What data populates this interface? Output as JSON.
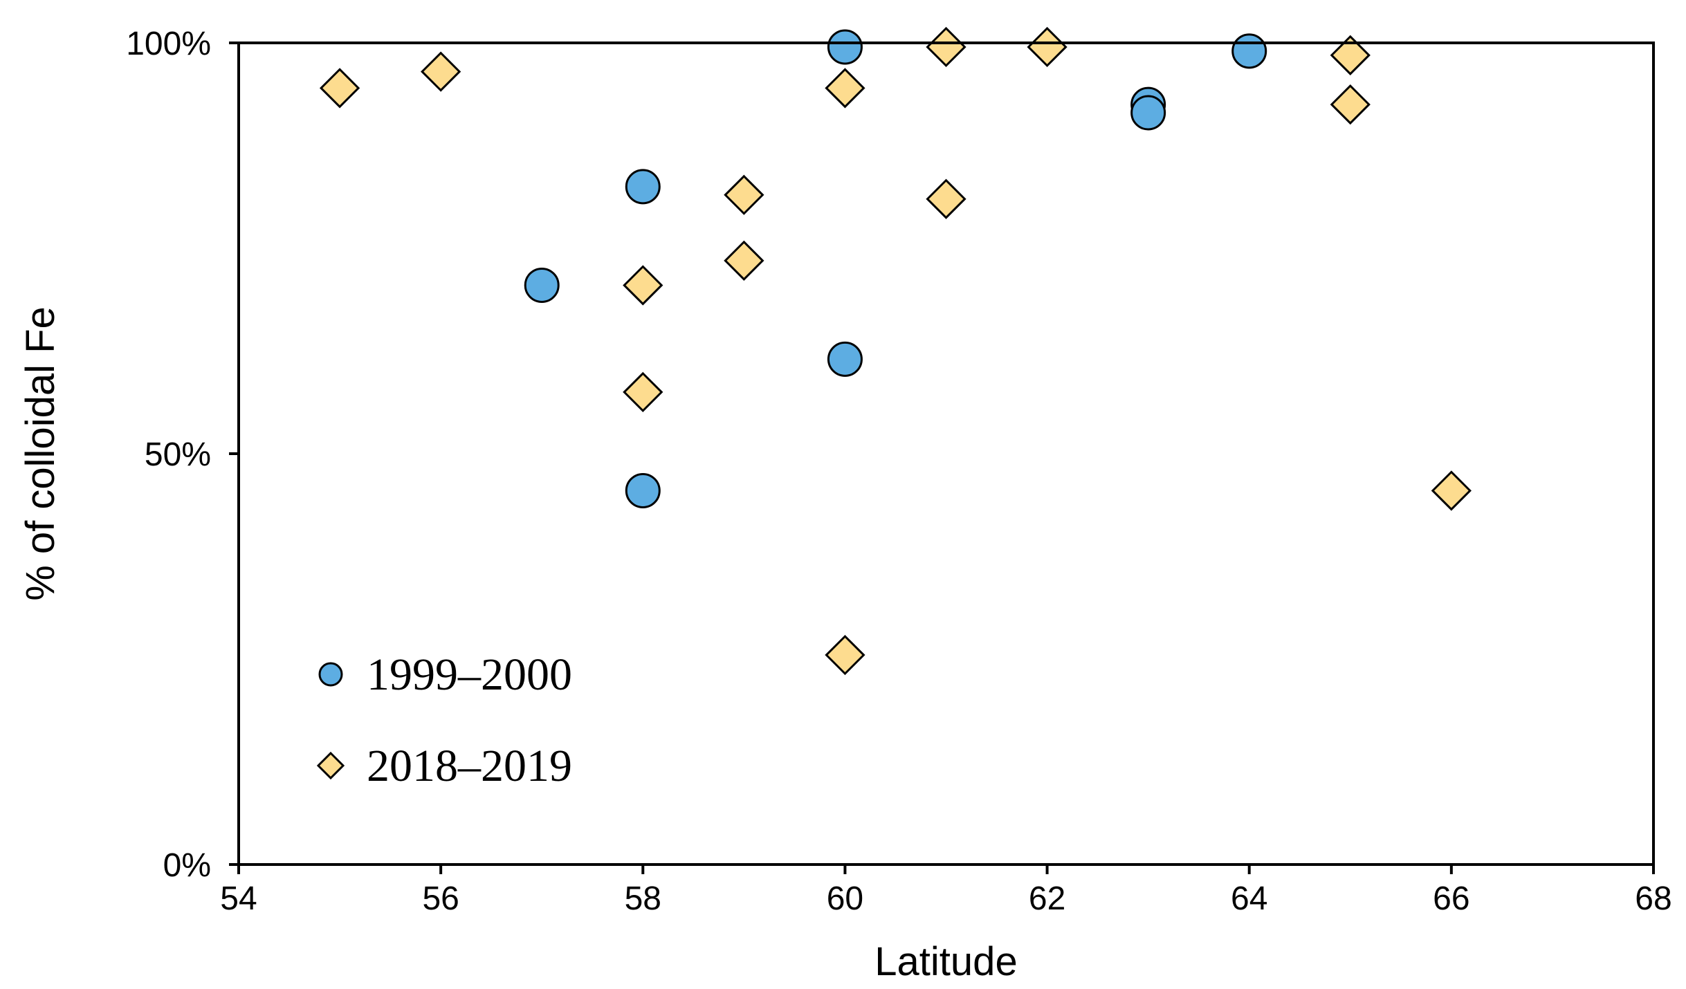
{
  "chart_data": {
    "type": "scatter",
    "title": "",
    "xlabel": "Latitude",
    "ylabel": "% of colloidal Fe",
    "xlim": [
      54,
      68
    ],
    "ylim": [
      0,
      100
    ],
    "xticks": [
      54,
      56,
      58,
      60,
      62,
      64,
      66,
      68
    ],
    "yticks": [
      0,
      50,
      100
    ],
    "ytick_labels": [
      "0%",
      "50%",
      "100%"
    ],
    "grid": false,
    "legend_position": "bottom-left",
    "colors": {
      "series_1_fill": "#5DADE2",
      "series_2_fill": "#FDDC8F",
      "marker_stroke": "#000000",
      "axis": "#000000"
    },
    "series": [
      {
        "name": "1999–2000",
        "marker": "circle",
        "points": [
          {
            "x": 57,
            "y": 70.5
          },
          {
            "x": 58,
            "y": 82.5
          },
          {
            "x": 58,
            "y": 45.5
          },
          {
            "x": 60,
            "y": 99.5
          },
          {
            "x": 60,
            "y": 61.5
          },
          {
            "x": 63,
            "y": 92.5
          },
          {
            "x": 63,
            "y": 91.5
          },
          {
            "x": 64,
            "y": 99.0
          }
        ]
      },
      {
        "name": "2018–2019",
        "marker": "diamond",
        "points": [
          {
            "x": 55,
            "y": 94.5
          },
          {
            "x": 56,
            "y": 96.5
          },
          {
            "x": 58,
            "y": 70.5
          },
          {
            "x": 58,
            "y": 57.5
          },
          {
            "x": 59,
            "y": 81.5
          },
          {
            "x": 59,
            "y": 73.5
          },
          {
            "x": 60,
            "y": 94.5
          },
          {
            "x": 60,
            "y": 25.5
          },
          {
            "x": 61,
            "y": 99.5
          },
          {
            "x": 61,
            "y": 81.0
          },
          {
            "x": 62,
            "y": 99.5
          },
          {
            "x": 65,
            "y": 98.5
          },
          {
            "x": 65,
            "y": 92.5
          },
          {
            "x": 66,
            "y": 45.5
          }
        ]
      }
    ]
  }
}
